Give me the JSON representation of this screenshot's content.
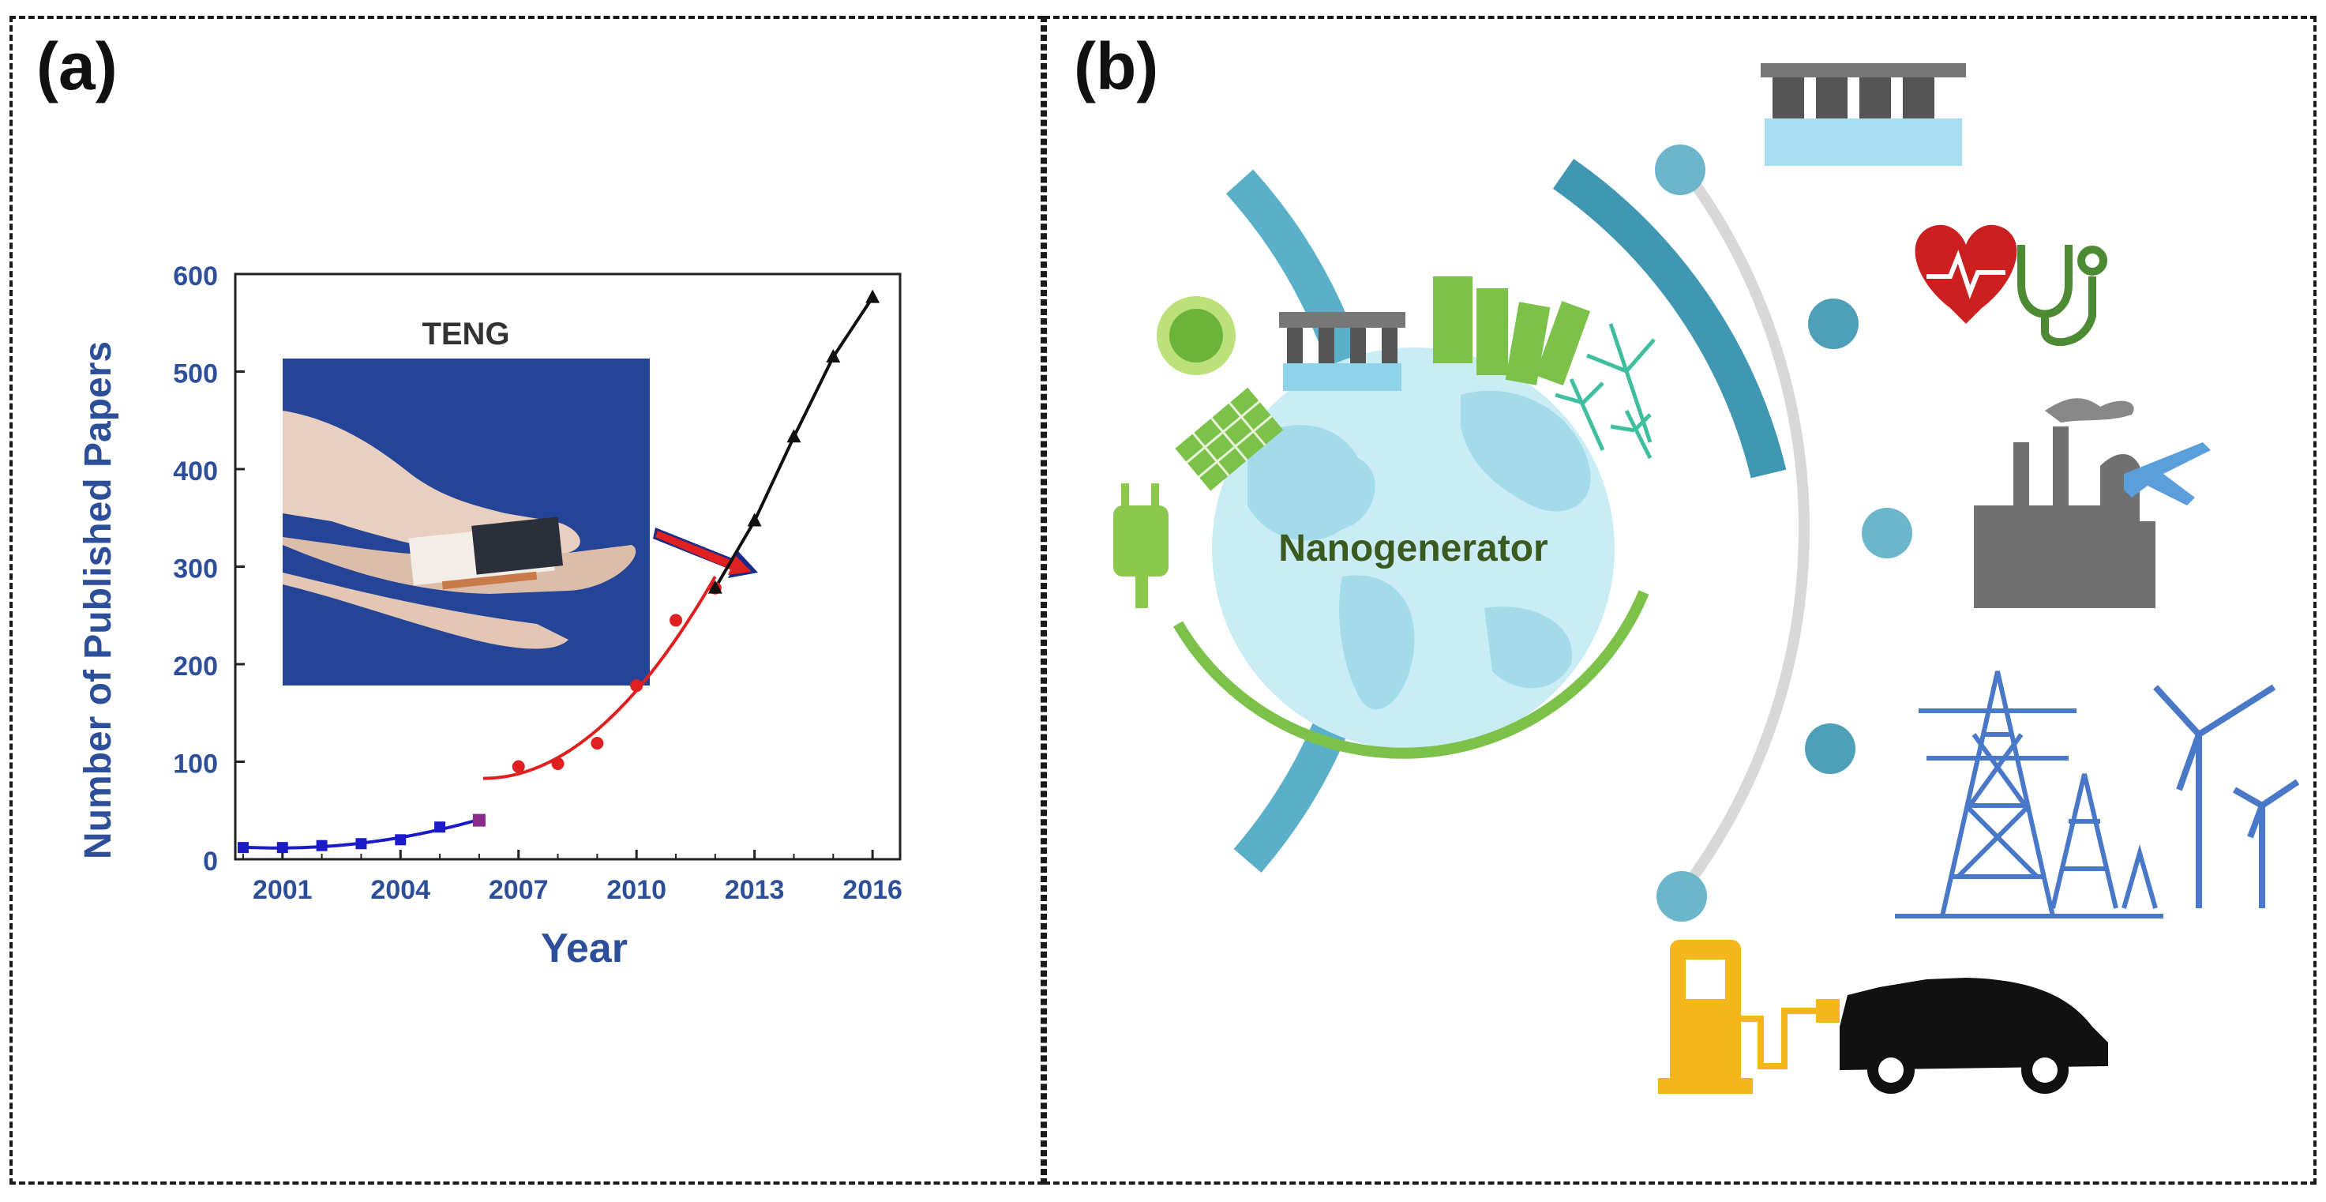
{
  "panels": {
    "a_label": "(a)",
    "b_label": "(b)"
  },
  "chart_data": {
    "type": "line",
    "title": "",
    "xlabel": "Year",
    "ylabel": "Number of Published Papers",
    "xlim": [
      1999.8,
      2016.7
    ],
    "ylim": [
      0,
      600
    ],
    "x_ticks": [
      2001,
      2004,
      2007,
      2010,
      2013,
      2016
    ],
    "y_ticks": [
      0,
      100,
      200,
      300,
      400,
      500,
      600
    ],
    "grid": false,
    "inset_label": "TENG",
    "series": [
      {
        "color": "#1a1ac8",
        "marker": "square",
        "style": "markers+fit",
        "x": [
          2000,
          2001,
          2002,
          2003,
          2004,
          2005,
          2006
        ],
        "y": [
          12,
          12,
          14,
          16,
          20,
          33,
          40
        ]
      },
      {
        "color": "#e02020",
        "marker": "circle",
        "style": "markers+fit",
        "x": [
          2007,
          2008,
          2009,
          2010,
          2011,
          2012
        ],
        "y": [
          95,
          98,
          119,
          178,
          245,
          278
        ]
      },
      {
        "color": "#111111",
        "marker": "triangle",
        "style": "markers+line",
        "x": [
          2012,
          2013,
          2014,
          2015,
          2016
        ],
        "y": [
          278,
          347,
          433,
          515,
          576
        ]
      }
    ]
  },
  "diagram": {
    "center_label": "Nanogenerator",
    "colors": {
      "arc_blue": "#5ab0c8",
      "arc_blue_dark": "#3f97b1",
      "arc_green": "#7cc24a",
      "timeline_gray": "#d5d5d5",
      "node_blue": "#5aa9c2",
      "globe_water": "#bfe7f2",
      "globe_land": "#9fd8e8",
      "label_green": "#3a5a1f"
    },
    "icons": [
      "sun-icon",
      "solar-panel-icon",
      "dam-icon",
      "city-icon",
      "wind-farm-icon",
      "plug-icon",
      "heart-monitor-icon",
      "stethoscope-icon",
      "factory-icon",
      "airplane-icon",
      "power-tower-icon",
      "wind-turbine-icon",
      "fuel-pump-icon",
      "electric-car-icon"
    ]
  }
}
